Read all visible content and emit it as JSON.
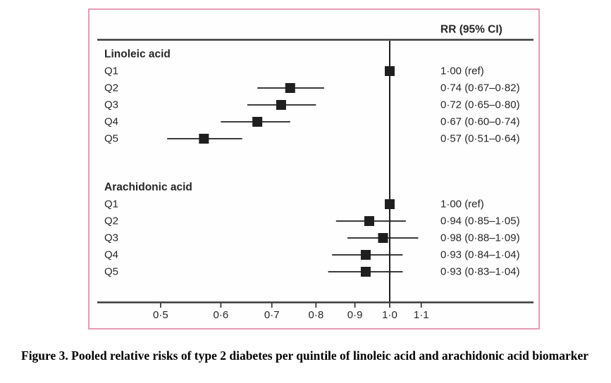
{
  "figure": {
    "header_label": "RR (95% CI)",
    "caption": "Figure 3. Pooled relative risks of type 2 diabetes per quintile of linoleic acid and arachidonic acid biomarker"
  },
  "style": {
    "frame_pink": "#e59cb2",
    "ink_black": "#1f1f1f",
    "rule_gray": "#3a3a3a",
    "text_color": "#262626"
  },
  "chart_data": {
    "type": "scatter",
    "chart_kind": "forest-plot",
    "title": "",
    "xlabel": "",
    "ylabel": "",
    "x_axis": {
      "scale": "log10",
      "tick_values": [
        0.5,
        0.6,
        0.7,
        0.8,
        0.9,
        1.0,
        1.1
      ],
      "tick_labels": [
        "0·5",
        "0·6",
        "0·7",
        "0·8",
        "0·9",
        "1·0",
        "1·1"
      ],
      "range": [
        0.42,
        1.55
      ],
      "reference_line": 1.0
    },
    "value_column_header": "RR (95% CI)",
    "groups": [
      {
        "label": "Linoleic acid",
        "rows": [
          {
            "label": "Q1",
            "rr": 1.0,
            "ci_low": null,
            "ci_high": null,
            "text": "1·00 (ref)"
          },
          {
            "label": "Q2",
            "rr": 0.74,
            "ci_low": 0.67,
            "ci_high": 0.82,
            "text": "0·74 (0·67–0·82)"
          },
          {
            "label": "Q3",
            "rr": 0.72,
            "ci_low": 0.65,
            "ci_high": 0.8,
            "text": "0·72 (0·65–0·80)"
          },
          {
            "label": "Q4",
            "rr": 0.67,
            "ci_low": 0.6,
            "ci_high": 0.74,
            "text": "0·67 (0·60–0·74)"
          },
          {
            "label": "Q5",
            "rr": 0.57,
            "ci_low": 0.51,
            "ci_high": 0.64,
            "text": "0·57 (0·51–0·64)"
          }
        ]
      },
      {
        "label": "Arachidonic acid",
        "rows": [
          {
            "label": "Q1",
            "rr": 1.0,
            "ci_low": null,
            "ci_high": null,
            "text": "1·00 (ref)"
          },
          {
            "label": "Q2",
            "rr": 0.94,
            "ci_low": 0.85,
            "ci_high": 1.05,
            "text": "0·94 (0·85–1·05)"
          },
          {
            "label": "Q3",
            "rr": 0.98,
            "ci_low": 0.88,
            "ci_high": 1.09,
            "text": "0·98 (0·88–1·09)"
          },
          {
            "label": "Q4",
            "rr": 0.93,
            "ci_low": 0.84,
            "ci_high": 1.04,
            "text": "0·93 (0·84–1·04)"
          },
          {
            "label": "Q5",
            "rr": 0.93,
            "ci_low": 0.83,
            "ci_high": 1.04,
            "text": "0·93 (0·83–1·04)"
          }
        ]
      }
    ]
  }
}
